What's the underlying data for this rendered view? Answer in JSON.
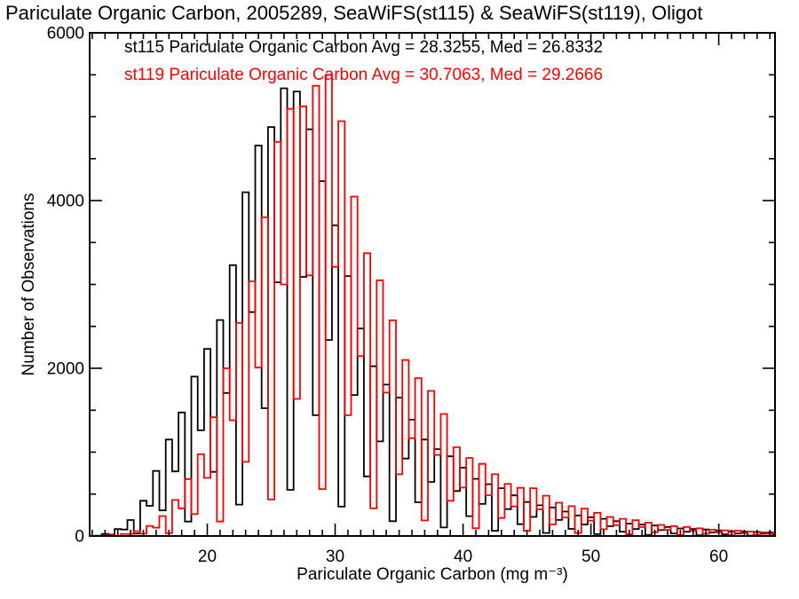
{
  "title": "Pariculate Organic Carbon, 2005289, SeaWiFS(st115) & SeaWiFS(st119), Oligot",
  "colors": {
    "background": "#ffffff",
    "axis": "#000000",
    "series_st115": "#000000",
    "series_st119": "#ff0000"
  },
  "legend": {
    "entries": [
      {
        "label": "st115 Pariculate Organic Carbon Avg = 28.3255, Med = 26.8332",
        "color": "#000000"
      },
      {
        "label": "st119 Pariculate Organic Carbon Avg = 30.7063, Med = 29.2666",
        "color": "#ff0000"
      }
    ]
  },
  "chart_data": {
    "type": "line",
    "subtype": "step-histogram-outline",
    "title": "Pariculate Organic Carbon, 2005289, SeaWiFS(st115) & SeaWiFS(st119), Oligot",
    "xlabel": "Pariculate Organic Carbon (mg m⁻³)",
    "ylabel": "Number of Observations",
    "xlim": [
      10.8,
      64.4
    ],
    "ylim": [
      0,
      6000
    ],
    "x_ticks": [
      20,
      30,
      40,
      50,
      60
    ],
    "x_tick_labels": [
      "20",
      "30",
      "40",
      "50",
      "60"
    ],
    "x_minor_step": 1,
    "y_ticks": [
      0,
      2000,
      4000,
      6000
    ],
    "y_tick_labels": [
      "0",
      "2000",
      "4000",
      "6000"
    ],
    "y_minor_step": 500,
    "grid": false,
    "legend_position": "top-left-inside",
    "bin_width": 0.5,
    "bins": [
      11,
      11.5,
      12,
      12.5,
      13,
      13.5,
      14,
      14.5,
      15,
      15.5,
      16,
      16.5,
      17,
      17.5,
      18,
      18.5,
      19,
      19.5,
      20,
      20.5,
      21,
      21.5,
      22,
      22.5,
      23,
      23.5,
      24,
      24.5,
      25,
      25.5,
      26,
      26.5,
      27,
      27.5,
      28,
      28.5,
      29,
      29.5,
      30,
      30.5,
      31,
      31.5,
      32,
      32.5,
      33,
      33.5,
      34,
      34.5,
      35,
      35.5,
      36,
      36.5,
      37,
      37.5,
      38,
      38.5,
      39,
      39.5,
      40,
      40.5,
      41,
      41.5,
      42,
      42.5,
      43,
      43.5,
      44,
      44.5,
      45,
      45.5,
      46,
      46.5,
      47,
      47.5,
      48,
      48.5,
      49,
      49.5,
      50,
      50.5,
      51,
      51.5,
      52,
      52.5,
      53,
      53.5,
      54,
      54.5,
      55,
      55.5,
      56,
      56.5,
      57,
      57.5,
      58,
      58.5,
      59,
      59.5,
      60,
      60.5,
      61,
      61.5,
      62,
      62.5,
      63,
      63.5,
      64,
      64.5
    ],
    "series": [
      {
        "name": "st115",
        "source": "SeaWiFS(st115)",
        "color": "#000000",
        "avg": 28.3255,
        "med": 26.8332,
        "counts": [
          0,
          3,
          24,
          17,
          83,
          77,
          190,
          30,
          420,
          360,
          776,
          306,
          1150,
          770,
          1473,
          172,
          1900,
          1260,
          2231,
          765,
          2576,
          1705,
          3230,
          375,
          4100,
          2670,
          4656,
          1524,
          4876,
          3025,
          5339,
          550,
          5300,
          3090,
          4850,
          1440,
          4232,
          2338,
          3705,
          350,
          3100,
          1680,
          2474,
          711,
          2024,
          1128,
          1805,
          177,
          1650,
          924,
          1387,
          402,
          1150,
          644,
          1036,
          102,
          950,
          537,
          815,
          237,
          681,
          382,
          618,
          61,
          570,
          321,
          485,
          141,
          405,
          227,
          366,
          36,
          340,
          192,
          291,
          85,
          244,
          138,
          223,
          22,
          205,
          116,
          177,
          51,
          147,
          83,
          135,
          13,
          125,
          70,
          107,
          31,
          90,
          51,
          83,
          8,
          77,
          43,
          66,
          19,
          55,
          31,
          51,
          5,
          48,
          27,
          42,
          12
        ]
      },
      {
        "name": "st119",
        "source": "SeaWiFS(st119)",
        "color": "#ff0000",
        "avg": 30.7063,
        "med": 29.2666,
        "counts": [
          0,
          0,
          2,
          8,
          2,
          25,
          24,
          58,
          27,
          120,
          99,
          238,
          33,
          430,
          330,
          679,
          261,
          975,
          693,
          1416,
          173,
          2000,
          1380,
          2541,
          885,
          3036,
          2008,
          3800,
          435,
          4700,
          3000,
          5093,
          1635,
          5124,
          3108,
          5368,
          560,
          5500,
          3210,
          4947,
          1440,
          4048,
          2145,
          3373,
          330,
          3050,
          1710,
          2571,
          735,
          2098,
          1166,
          1881,
          185,
          1730,
          966,
          1455,
          420,
          1058,
          578,
          931,
          92,
          860,
          486,
          737,
          215,
          621,
          352,
          575,
          61,
          570,
          318,
          480,
          139,
          397,
          221,
          356,
          35,
          327,
          183,
          276,
          80,
          228,
          128,
          205,
          20,
          188,
          106,
          159,
          46,
          132,
          73,
          118,
          12,
          108,
          61,
          91,
          26,
          75,
          42,
          68,
          7,
          63,
          35,
          53,
          15,
          44,
          25,
          40
        ]
      }
    ]
  }
}
